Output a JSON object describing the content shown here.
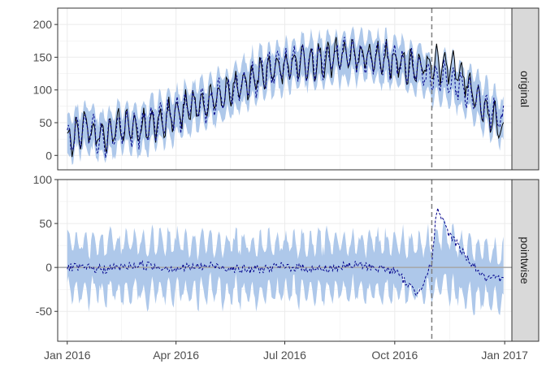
{
  "chart_data": {
    "type": "line",
    "x_axis": {
      "min": "2015-12-24",
      "max": "2017-01-07",
      "ticks": [
        {
          "date": "2016-01-01",
          "label": "Jan 2016"
        },
        {
          "date": "2016-04-01",
          "label": "Apr 2016"
        },
        {
          "date": "2016-07-01",
          "label": "Jul 2016"
        },
        {
          "date": "2016-10-01",
          "label": "Oct 2016"
        },
        {
          "date": "2017-01-01",
          "label": "Jan 2017"
        }
      ]
    },
    "intervention_date": "2016-11-01",
    "grid": true,
    "colors": {
      "band": "#aec8ea",
      "observed": "#000000",
      "prediction": "#00008b",
      "zero_line": "#a6a6a6",
      "intervention": "#7f7f7f",
      "strip_fill": "#d9d9d9",
      "grid": "#ebebeb"
    },
    "panels": [
      {
        "strip": "original",
        "ylim": [
          -22,
          225
        ],
        "yticks": [
          0,
          50,
          100,
          150,
          200
        ],
        "series": [
          {
            "kind": "observed",
            "style": "solid",
            "points": [
              [
                "2016-01-01",
                21
              ],
              [
                "2016-01-15",
                45
              ],
              [
                "2016-02-01",
                28
              ],
              [
                "2016-02-15",
                44
              ],
              [
                "2016-03-01",
                39
              ],
              [
                "2016-03-15",
                52
              ],
              [
                "2016-04-01",
                62
              ],
              [
                "2016-04-15",
                75
              ],
              [
                "2016-05-01",
                82
              ],
              [
                "2016-05-15",
                95
              ],
              [
                "2016-06-01",
                113
              ],
              [
                "2016-06-15",
                128
              ],
              [
                "2016-07-01",
                136
              ],
              [
                "2016-07-15",
                144
              ],
              [
                "2016-08-01",
                146
              ],
              [
                "2016-08-15",
                149
              ],
              [
                "2016-09-01",
                151
              ],
              [
                "2016-09-15",
                147
              ],
              [
                "2016-10-01",
                144
              ],
              [
                "2016-10-15",
                136
              ],
              [
                "2016-11-01",
                138
              ],
              [
                "2016-11-15",
                140
              ],
              [
                "2016-12-01",
                112
              ],
              [
                "2016-12-15",
                72
              ],
              [
                "2016-12-31",
                35
              ]
            ]
          },
          {
            "kind": "prediction",
            "style": "dashed",
            "points": [
              [
                "2016-01-01",
                21
              ],
              [
                "2016-01-15",
                45
              ],
              [
                "2016-02-01",
                28
              ],
              [
                "2016-02-15",
                44
              ],
              [
                "2016-03-01",
                39
              ],
              [
                "2016-03-15",
                52
              ],
              [
                "2016-04-01",
                62
              ],
              [
                "2016-04-15",
                75
              ],
              [
                "2016-05-01",
                82
              ],
              [
                "2016-05-15",
                95
              ],
              [
                "2016-06-01",
                113
              ],
              [
                "2016-06-15",
                128
              ],
              [
                "2016-07-01",
                136
              ],
              [
                "2016-07-15",
                144
              ],
              [
                "2016-08-01",
                146
              ],
              [
                "2016-08-15",
                149
              ],
              [
                "2016-09-01",
                151
              ],
              [
                "2016-09-15",
                147
              ],
              [
                "2016-10-01",
                144
              ],
              [
                "2016-10-15",
                136
              ],
              [
                "2016-11-01",
                120
              ],
              [
                "2016-11-15",
                118
              ],
              [
                "2016-12-01",
                98
              ],
              [
                "2016-12-15",
                74
              ],
              [
                "2016-12-31",
                50
              ]
            ]
          }
        ],
        "band": {
          "center": [
            [
              "2016-01-01",
              21
            ],
            [
              "2016-01-15",
              45
            ],
            [
              "2016-02-01",
              28
            ],
            [
              "2016-02-15",
              44
            ],
            [
              "2016-03-01",
              39
            ],
            [
              "2016-03-15",
              52
            ],
            [
              "2016-04-01",
              62
            ],
            [
              "2016-04-15",
              75
            ],
            [
              "2016-05-01",
              82
            ],
            [
              "2016-05-15",
              95
            ],
            [
              "2016-06-01",
              113
            ],
            [
              "2016-06-15",
              128
            ],
            [
              "2016-07-01",
              136
            ],
            [
              "2016-07-15",
              144
            ],
            [
              "2016-08-01",
              146
            ],
            [
              "2016-08-15",
              149
            ],
            [
              "2016-09-01",
              151
            ],
            [
              "2016-09-15",
              147
            ],
            [
              "2016-10-01",
              144
            ],
            [
              "2016-10-15",
              136
            ],
            [
              "2016-11-01",
              120
            ],
            [
              "2016-11-15",
              118
            ],
            [
              "2016-12-01",
              98
            ],
            [
              "2016-12-15",
              74
            ],
            [
              "2016-12-31",
              50
            ]
          ],
          "halfwidth": 26
        }
      },
      {
        "strip": "pointwise",
        "ylim": [
          -84,
          100
        ],
        "yticks": [
          -50,
          0,
          50,
          100
        ],
        "zero_line": 0,
        "series": [
          {
            "kind": "prediction",
            "style": "dashed",
            "points": [
              [
                "2016-01-01",
                0
              ],
              [
                "2016-02-01",
                -2
              ],
              [
                "2016-03-01",
                3
              ],
              [
                "2016-04-01",
                -1
              ],
              [
                "2016-05-01",
                2
              ],
              [
                "2016-06-01",
                -3
              ],
              [
                "2016-07-01",
                1
              ],
              [
                "2016-08-01",
                -2
              ],
              [
                "2016-09-01",
                3
              ],
              [
                "2016-10-01",
                -4
              ],
              [
                "2016-10-20",
                -30
              ],
              [
                "2016-11-01",
                5
              ],
              [
                "2016-11-05",
                65
              ],
              [
                "2016-11-15",
                40
              ],
              [
                "2016-12-01",
                10
              ],
              [
                "2016-12-15",
                -12
              ],
              [
                "2016-12-31",
                -15
              ]
            ]
          }
        ],
        "band": {
          "center": [
            [
              "2016-01-01",
              0
            ],
            [
              "2016-11-01",
              0
            ],
            [
              "2016-11-05",
              10
            ],
            [
              "2016-12-01",
              -5
            ],
            [
              "2016-12-31",
              -15
            ]
          ],
          "halfwidth": 24
        }
      }
    ]
  }
}
